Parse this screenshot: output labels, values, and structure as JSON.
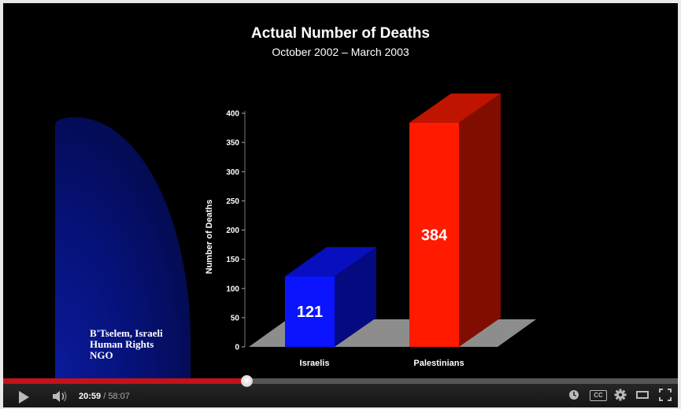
{
  "video": {
    "title": "Actual Number of Deaths",
    "subtitle": "October 2002 – March 2003",
    "source_caption": [
      "B'Tselem, Israeli",
      "Human Rights",
      "NGO"
    ]
  },
  "chart_data": {
    "type": "bar",
    "title": "Actual Number of Deaths",
    "subtitle": "October 2002 – March 2003",
    "ylabel": "Number of Deaths",
    "xlabel": "",
    "categories": [
      "Israelis",
      "Palestinians"
    ],
    "values": [
      121,
      384
    ],
    "value_labels": [
      "121",
      "384"
    ],
    "colors": [
      "#0a14ff",
      "#ff1a00"
    ],
    "ylim": [
      0,
      400
    ],
    "yticks": [
      0,
      50,
      100,
      150,
      200,
      250,
      300,
      350,
      400
    ],
    "grid": false,
    "legend": "none",
    "style": "3d"
  },
  "player": {
    "current_time": "20:59",
    "separator": " / ",
    "duration": "58:07",
    "progress": 0.361,
    "icons": [
      "play-icon",
      "volume-icon",
      "watch-later-icon",
      "captions-icon",
      "gear-icon",
      "theater-mode-icon",
      "fullscreen-icon"
    ],
    "captions_label": "CC"
  }
}
